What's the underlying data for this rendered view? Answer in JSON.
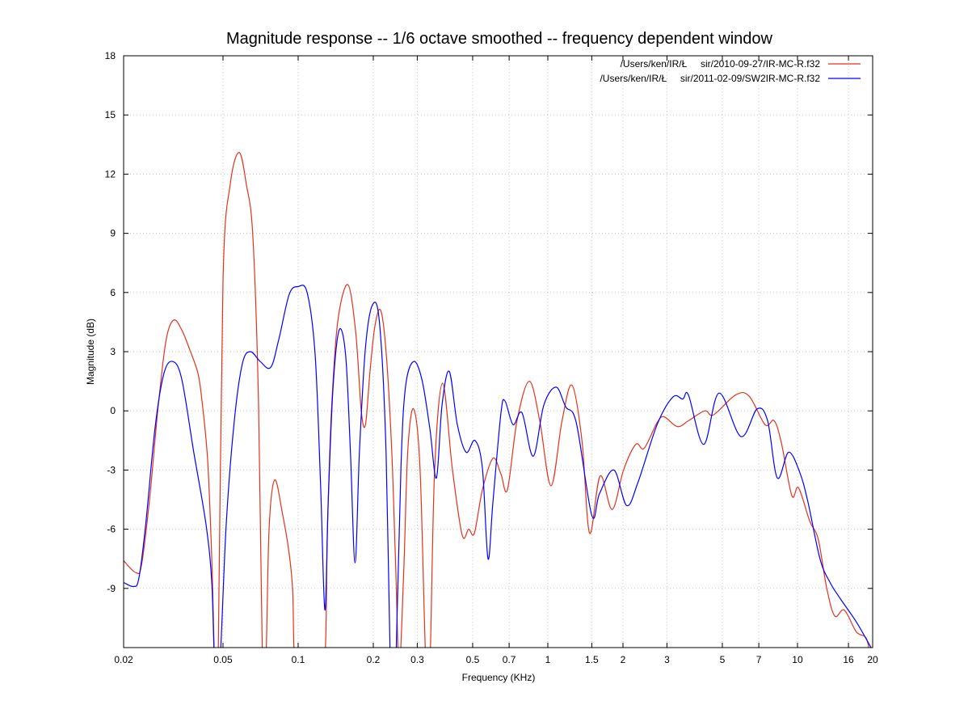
{
  "chart_data": {
    "type": "line",
    "title": "Magnitude response -- 1/6 octave smoothed -- frequency dependent window",
    "xlabel": "Frequency (KHz)",
    "ylabel": "Magnitude (dB)",
    "xscale": "log",
    "xlim": [
      0.02,
      20
    ],
    "ylim": [
      -12,
      18
    ],
    "grid": true,
    "legend_position": "top-right",
    "xticks": [
      0.02,
      0.05,
      0.1,
      0.2,
      0.3,
      0.5,
      0.7,
      1,
      1.5,
      2,
      3,
      5,
      7,
      10,
      16,
      20
    ],
    "xtick_labels": [
      "0.02",
      "0.05",
      "0.1",
      "0.2",
      "0.3",
      "0.5",
      "0.7",
      "1",
      "1.5",
      "2",
      "3",
      "5",
      "7",
      "10",
      "16",
      "20"
    ],
    "yticks": [
      18,
      15,
      12,
      9,
      6,
      3,
      0,
      -3,
      -6,
      -9
    ],
    "ytick_labels": [
      "18",
      "15",
      "12",
      "9",
      "6",
      "3",
      "0",
      "-3",
      "-6",
      "-9"
    ],
    "series": [
      {
        "name": "/Users/ken/IR/Ł     sir/2010-09-27/IR-MC-R.f32",
        "color": "#e2321c",
        "points": [
          [
            0.02,
            -7.6
          ],
          [
            0.0224,
            -8.2
          ],
          [
            0.0236,
            -7.8
          ],
          [
            0.0254,
            -4.5
          ],
          [
            0.0274,
            0
          ],
          [
            0.0295,
            3.5
          ],
          [
            0.0317,
            4.6
          ],
          [
            0.0342,
            4.1
          ],
          [
            0.0368,
            3.1
          ],
          [
            0.0397,
            1.9
          ],
          [
            0.0412,
            0.5
          ],
          [
            0.0434,
            -2.5
          ],
          [
            0.0451,
            -7.5
          ],
          [
            0.0464,
            -13
          ],
          [
            0.0478,
            -13
          ],
          [
            0.05,
            6.6
          ],
          [
            0.0535,
            11.5
          ],
          [
            0.058,
            13.1
          ],
          [
            0.062,
            11.5
          ],
          [
            0.0659,
            8.8
          ],
          [
            0.0694,
            0.3
          ],
          [
            0.072,
            -13
          ],
          [
            0.0742,
            -13
          ],
          [
            0.0765,
            -6
          ],
          [
            0.0806,
            -3.5
          ],
          [
            0.0868,
            -5.3
          ],
          [
            0.0915,
            -7
          ],
          [
            0.095,
            -9
          ],
          [
            0.0978,
            -13
          ],
          [
            0.112,
            -25
          ],
          [
            0.127,
            -13
          ],
          [
            0.131,
            -6
          ],
          [
            0.136,
            0
          ],
          [
            0.144,
            4.5
          ],
          [
            0.158,
            6.4
          ],
          [
            0.17,
            4
          ],
          [
            0.179,
            0
          ],
          [
            0.186,
            -0.7
          ],
          [
            0.194,
            2
          ],
          [
            0.203,
            4.3
          ],
          [
            0.214,
            5.1
          ],
          [
            0.225,
            3
          ],
          [
            0.237,
            -2
          ],
          [
            0.246,
            -8
          ],
          [
            0.254,
            -13
          ],
          [
            0.265,
            -8
          ],
          [
            0.275,
            -2
          ],
          [
            0.29,
            0.1
          ],
          [
            0.308,
            -3
          ],
          [
            0.325,
            -13
          ],
          [
            0.337,
            -13
          ],
          [
            0.352,
            -3
          ],
          [
            0.379,
            1.4
          ],
          [
            0.415,
            -3
          ],
          [
            0.454,
            -6.3
          ],
          [
            0.482,
            -6
          ],
          [
            0.508,
            -6.2
          ],
          [
            0.547,
            -4
          ],
          [
            0.603,
            -2.4
          ],
          [
            0.649,
            -3.2
          ],
          [
            0.689,
            -4
          ],
          [
            0.753,
            -0.5
          ],
          [
            0.843,
            1.5
          ],
          [
            0.928,
            -0.5
          ],
          [
            1.03,
            -3.8
          ],
          [
            1.14,
            -0.5
          ],
          [
            1.25,
            1.3
          ],
          [
            1.37,
            -1.5
          ],
          [
            1.47,
            -6.2
          ],
          [
            1.62,
            -3.3
          ],
          [
            1.81,
            -5.0
          ],
          [
            2.01,
            -3.0
          ],
          [
            2.25,
            -1.7
          ],
          [
            2.43,
            -1.9
          ],
          [
            2.74,
            -0.6
          ],
          [
            2.92,
            -0.3
          ],
          [
            3.3,
            -0.8
          ],
          [
            3.66,
            -0.5
          ],
          [
            4.25,
            0
          ],
          [
            4.61,
            -0.2
          ],
          [
            5.64,
            0.8
          ],
          [
            6.4,
            0.75
          ],
          [
            7.42,
            -0.7
          ],
          [
            8.06,
            -0.5
          ],
          [
            8.61,
            -1.6
          ],
          [
            9.49,
            -4.3
          ],
          [
            10.1,
            -3.9
          ],
          [
            11.2,
            -5.6
          ],
          [
            12.1,
            -6.5
          ],
          [
            13.1,
            -9
          ],
          [
            14.1,
            -10.4
          ],
          [
            15.4,
            -10.1
          ],
          [
            17.2,
            -11.2
          ],
          [
            18.8,
            -11.5
          ],
          [
            19.5,
            -12.3
          ]
        ]
      },
      {
        "name": "/Users/ken/IR/Ł     sir/2011-02-09/SW2IR-MC-R.f32",
        "color": "#0000ff",
        "points": [
          [
            0.02,
            -8.7
          ],
          [
            0.0219,
            -8.9
          ],
          [
            0.023,
            -8.5
          ],
          [
            0.0245,
            -5.8
          ],
          [
            0.0267,
            -0.9
          ],
          [
            0.029,
            1.9
          ],
          [
            0.0315,
            2.5
          ],
          [
            0.0342,
            1.6
          ],
          [
            0.0382,
            -2.1
          ],
          [
            0.0428,
            -5.8
          ],
          [
            0.0451,
            -8.7
          ],
          [
            0.0464,
            -13
          ],
          [
            0.0485,
            -13
          ],
          [
            0.0515,
            -5.8
          ],
          [
            0.0555,
            -0.5
          ],
          [
            0.0598,
            2.4
          ],
          [
            0.0644,
            3.0
          ],
          [
            0.0705,
            2.5
          ],
          [
            0.0776,
            2.2
          ],
          [
            0.0836,
            3.6
          ],
          [
            0.0921,
            5.9
          ],
          [
            0.1,
            6.3
          ],
          [
            0.1086,
            6.0
          ],
          [
            0.117,
            2.8
          ],
          [
            0.123,
            -3.8
          ],
          [
            0.128,
            -10.1
          ],
          [
            0.132,
            -4.6
          ],
          [
            0.138,
            1.2
          ],
          [
            0.146,
            4.1
          ],
          [
            0.155,
            2.8
          ],
          [
            0.162,
            -2.1
          ],
          [
            0.169,
            -7.7
          ],
          [
            0.176,
            -2.1
          ],
          [
            0.186,
            3.2
          ],
          [
            0.199,
            5.4
          ],
          [
            0.212,
            4.4
          ],
          [
            0.225,
            -2.1
          ],
          [
            0.234,
            -13
          ],
          [
            0.24,
            -20
          ],
          [
            0.246,
            -13
          ],
          [
            0.258,
            -2.9
          ],
          [
            0.269,
            1.2
          ],
          [
            0.29,
            2.5
          ],
          [
            0.313,
            1.6
          ],
          [
            0.337,
            -0.9
          ],
          [
            0.358,
            -3.4
          ],
          [
            0.377,
            0.3
          ],
          [
            0.403,
            2.0
          ],
          [
            0.434,
            -0.7
          ],
          [
            0.471,
            -2.1
          ],
          [
            0.511,
            -1.5
          ],
          [
            0.547,
            -2.9
          ],
          [
            0.576,
            -7.5
          ],
          [
            0.603,
            -4.6
          ],
          [
            0.649,
            -0.1
          ],
          [
            0.674,
            0.5
          ],
          [
            0.726,
            -0.7
          ],
          [
            0.788,
            -0.1
          ],
          [
            0.874,
            -2.3
          ],
          [
            0.964,
            0.3
          ],
          [
            1.08,
            1.2
          ],
          [
            1.18,
            0.2
          ],
          [
            1.3,
            -0.6
          ],
          [
            1.5,
            -5.3
          ],
          [
            1.61,
            -4.2
          ],
          [
            1.84,
            -3.0
          ],
          [
            2.07,
            -4.8
          ],
          [
            2.3,
            -3.6
          ],
          [
            2.74,
            -0.7
          ],
          [
            3.17,
            0.7
          ],
          [
            3.47,
            0.6
          ],
          [
            3.66,
            0.8
          ],
          [
            4.21,
            -1.7
          ],
          [
            4.85,
            0.9
          ],
          [
            5.93,
            -1.3
          ],
          [
            6.89,
            0.1
          ],
          [
            7.59,
            -0.5
          ],
          [
            8.3,
            -3.4
          ],
          [
            9.21,
            -2.1
          ],
          [
            10.2,
            -3.1
          ],
          [
            11.0,
            -4.6
          ],
          [
            12.3,
            -7.5
          ],
          [
            13.5,
            -8.7
          ],
          [
            14.8,
            -9.5
          ],
          [
            17.2,
            -10.7
          ],
          [
            19.7,
            -12
          ]
        ]
      }
    ]
  }
}
